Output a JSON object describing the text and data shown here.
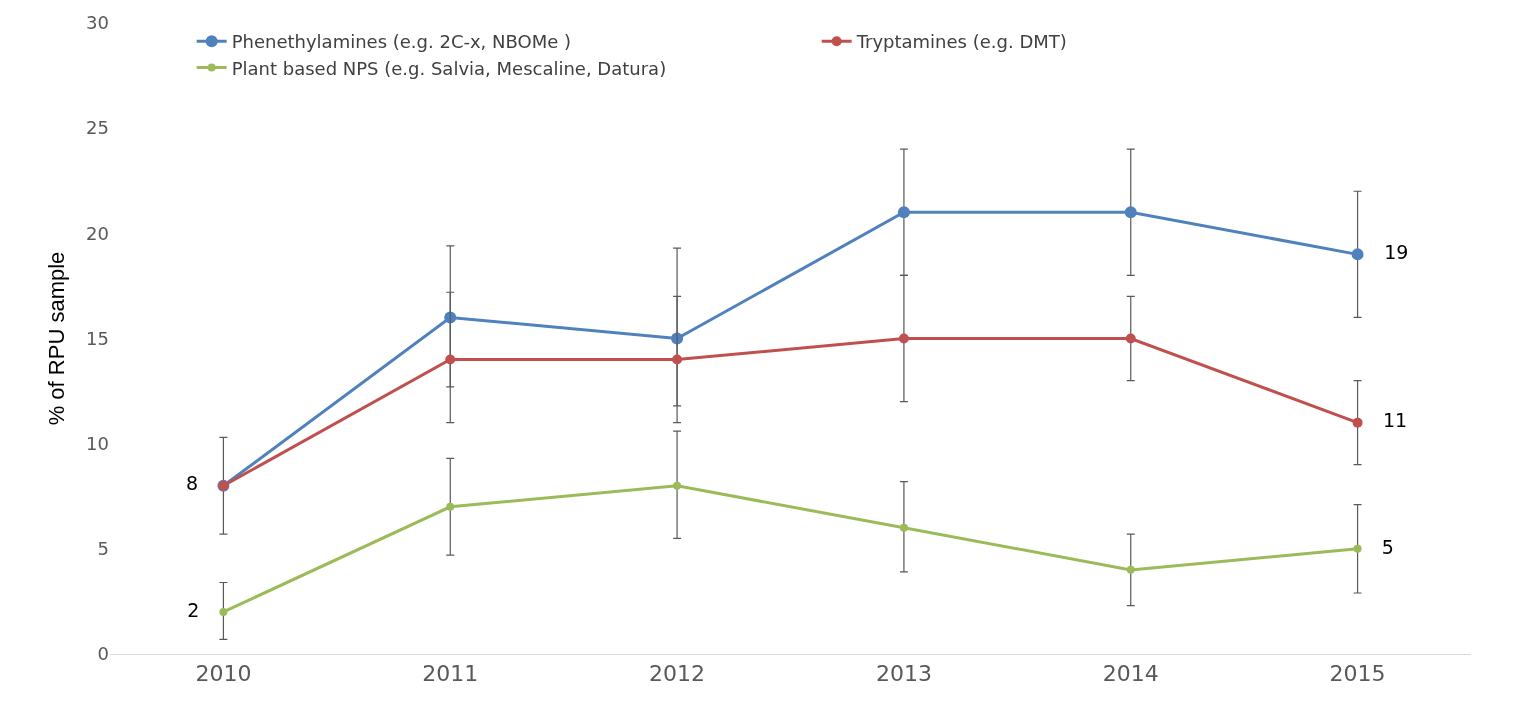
{
  "chart_data": {
    "type": "line",
    "ylabel": "% of RPU sample",
    "categories": [
      "2010",
      "2011",
      "2012",
      "2013",
      "2014",
      "2015"
    ],
    "ylim": [
      0,
      30
    ],
    "yticks": [
      0,
      5,
      10,
      15,
      20,
      25,
      30
    ],
    "legend": "top",
    "marker": "circle",
    "line_style": "solid",
    "series": [
      {
        "name": "Phenethylamines (e.g. 2C-x, NBOMe )",
        "color": "#4f81bd",
        "values": [
          8,
          16,
          15,
          21,
          21,
          19
        ],
        "errors": [
          [
            5.7,
            10.3
          ],
          [
            12.7,
            19.4
          ],
          [
            11,
            19.3
          ],
          [
            18,
            24
          ],
          [
            18,
            24
          ],
          [
            16,
            22
          ]
        ],
        "value_labels": [
          null,
          null,
          null,
          null,
          null,
          "19"
        ]
      },
      {
        "name": "Tryptamines (e.g. DMT)",
        "color": "#c0504d",
        "values": [
          8,
          14,
          14,
          15,
          15,
          11
        ],
        "errors": [
          null,
          [
            11,
            17.2
          ],
          [
            11.8,
            17
          ],
          [
            12,
            18
          ],
          [
            13,
            17
          ],
          [
            9,
            13
          ]
        ],
        "value_labels": [
          "8",
          null,
          null,
          null,
          null,
          "11"
        ]
      },
      {
        "name": "Plant based NPS (e.g. Salvia, Mescaline, Datura)",
        "color": "#9bbb59",
        "values": [
          2,
          7,
          8,
          6,
          4,
          5
        ],
        "errors": [
          [
            0.7,
            3.4
          ],
          [
            4.7,
            9.3
          ],
          [
            5.5,
            10.6
          ],
          [
            3.9,
            8.2
          ],
          [
            2.3,
            5.7
          ],
          [
            2.9,
            7.1
          ]
        ],
        "value_labels": [
          "2",
          null,
          null,
          null,
          null,
          "5"
        ]
      }
    ]
  }
}
